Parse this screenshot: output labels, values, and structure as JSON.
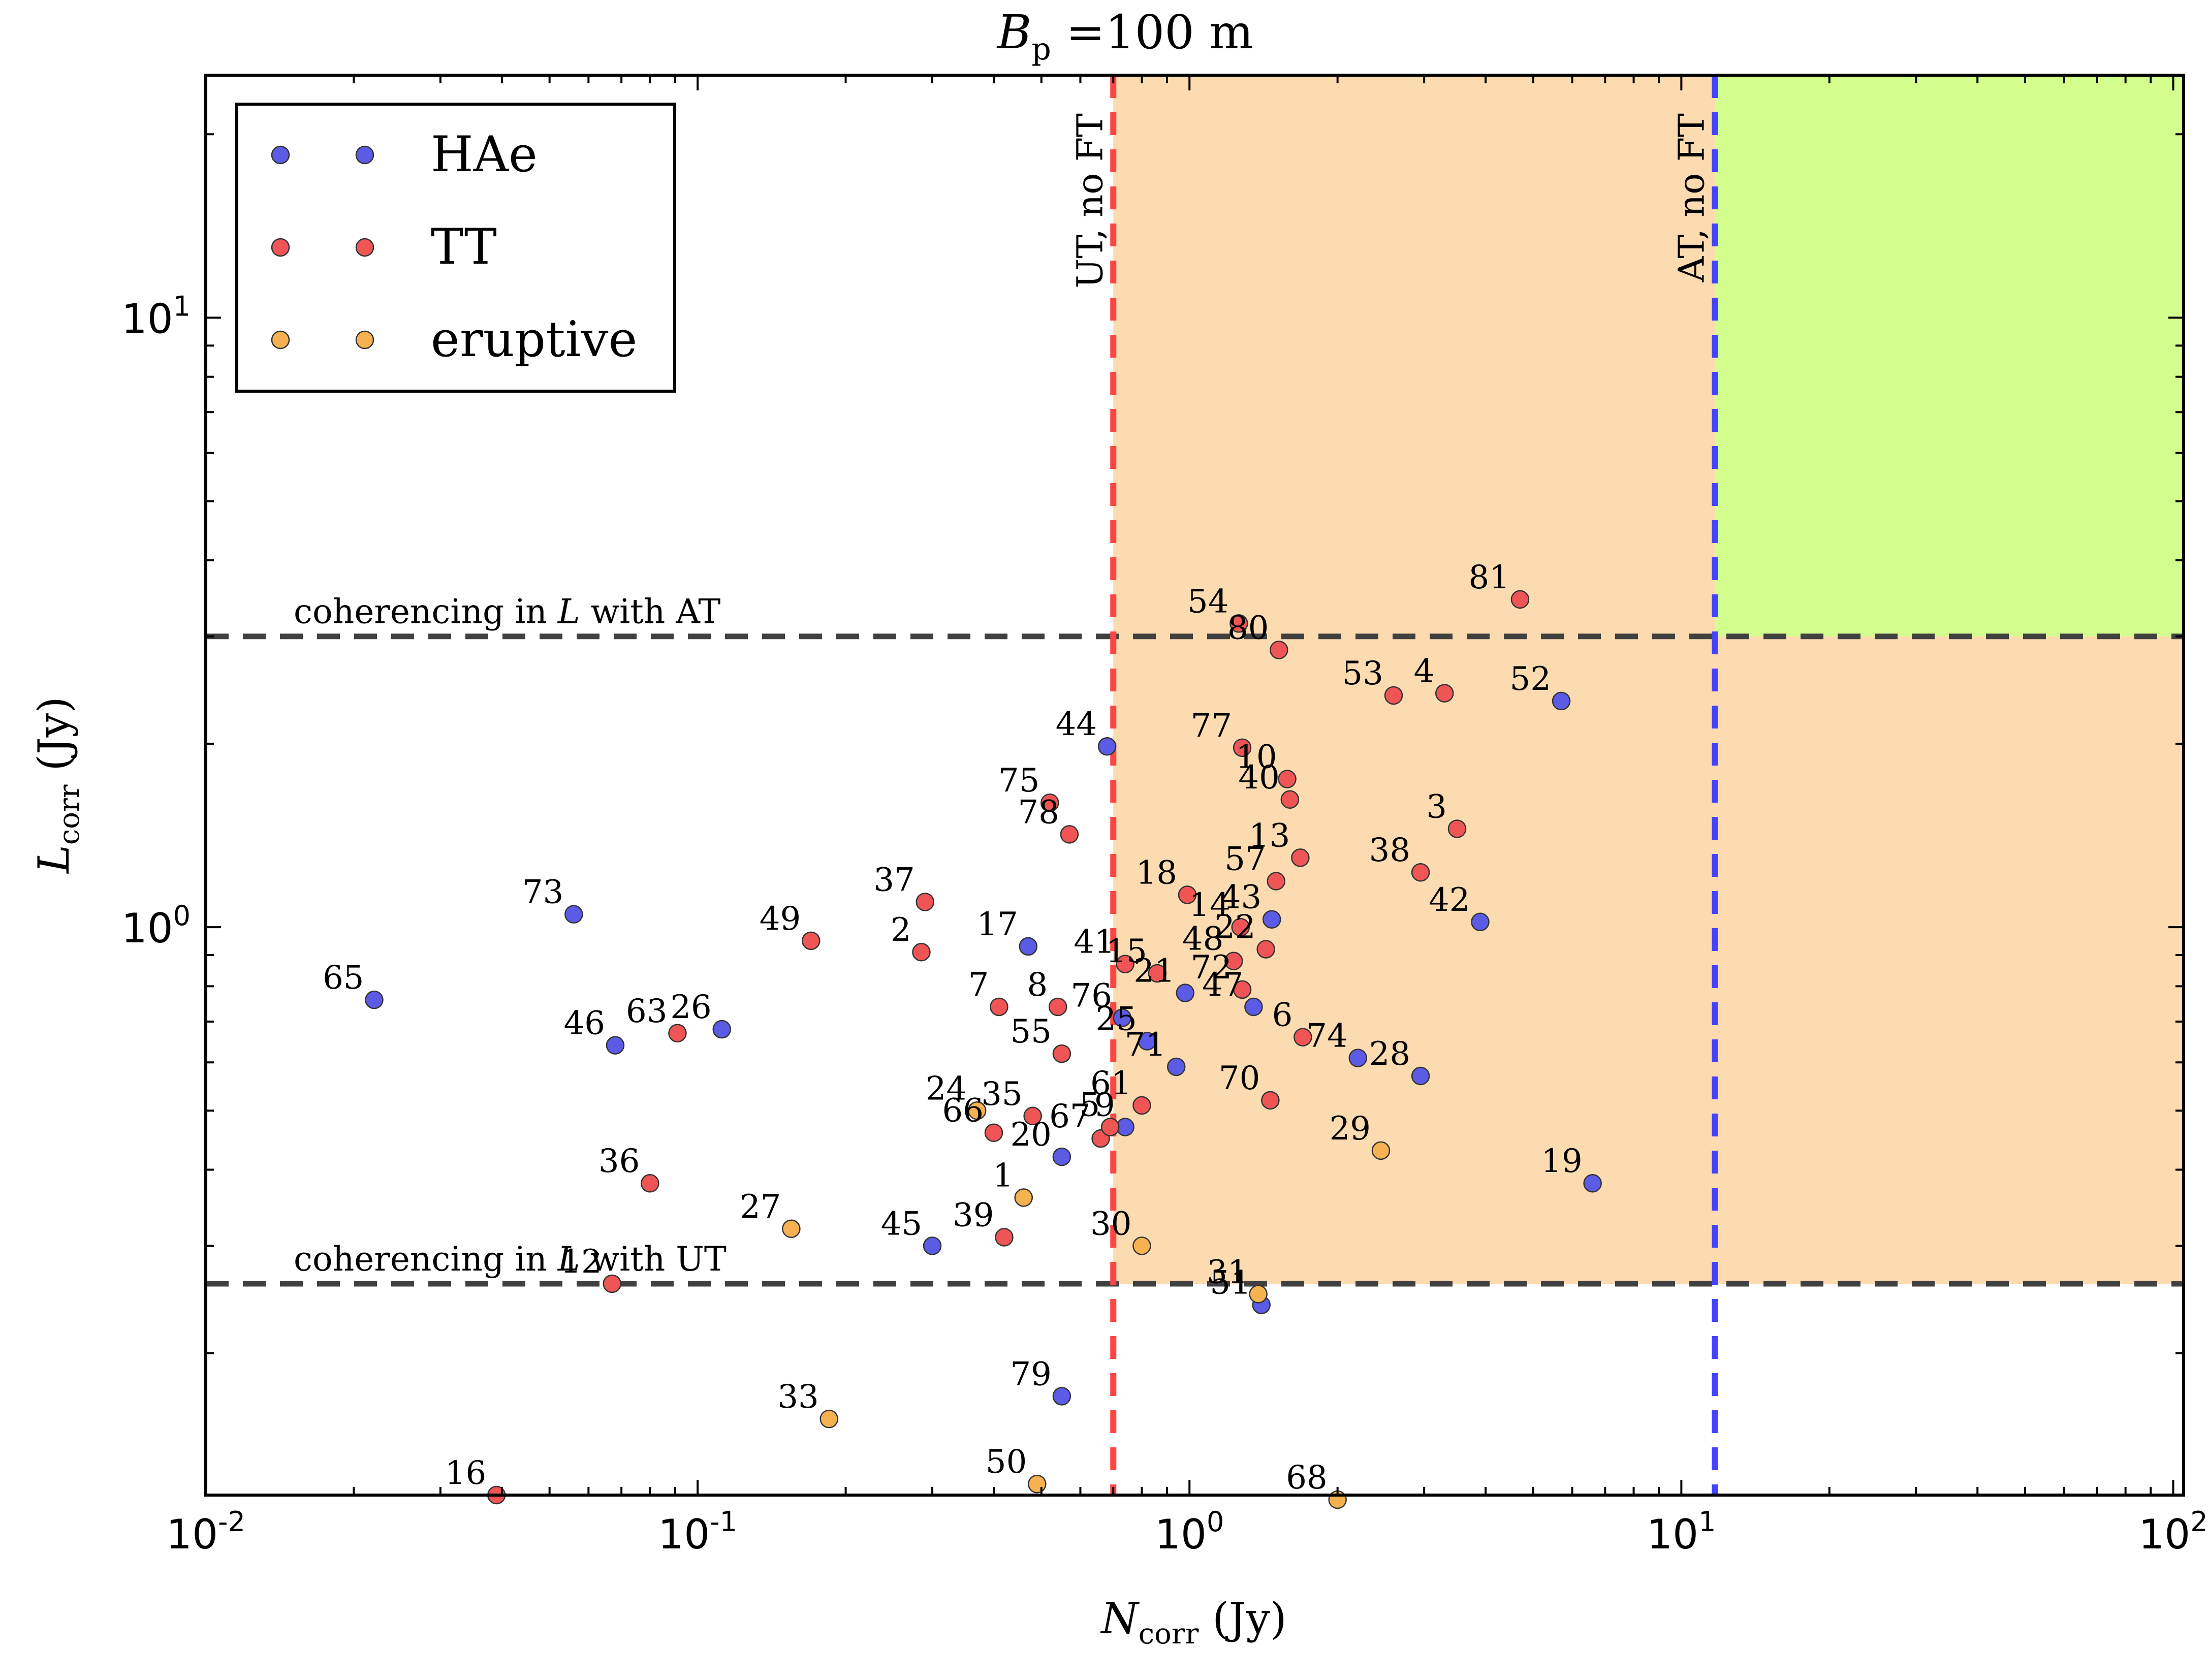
{
  "chart_data": {
    "type": "scatter",
    "title": "B_p = 100 m",
    "title_parts": {
      "main": "B",
      "sub": "p",
      "rest": " =100 m"
    },
    "xlabel_parts": {
      "main": "N",
      "sub": "corr",
      "rest": " (Jy)"
    },
    "ylabel_parts": {
      "main": "L",
      "sub": "corr",
      "rest": " (Jy)"
    },
    "x_scale": "log",
    "y_scale": "log",
    "xlim": [
      0.01,
      105
    ],
    "ylim": [
      0.117,
      25
    ],
    "x_ticks": [
      {
        "value": 0.01,
        "base": "10",
        "exp": "-2"
      },
      {
        "value": 0.1,
        "base": "10",
        "exp": "-1"
      },
      {
        "value": 1,
        "base": "10",
        "exp": "0"
      },
      {
        "value": 10,
        "base": "10",
        "exp": "1"
      },
      {
        "value": 100,
        "base": "10",
        "exp": "2"
      }
    ],
    "y_ticks": [
      {
        "value": 1,
        "base": "10",
        "exp": "0"
      },
      {
        "value": 10,
        "base": "10",
        "exp": "1"
      }
    ],
    "grid": false,
    "legend_position": "top-left",
    "colors": {
      "HAe": "#5b5be6",
      "TT": "#f05555",
      "eruptive": "#f6b250",
      "orange_region": "#fddbb0",
      "green_region": "#d3fd8d",
      "ut_line": "#ff4444",
      "at_line": "#4444ff",
      "coherencing_line": "#404040"
    },
    "regions": [
      {
        "name": "orange",
        "x_range": [
          0.7,
          105
        ],
        "y_range": [
          0.26,
          25
        ]
      },
      {
        "name": "green",
        "x_range": [
          11.7,
          105
        ],
        "y_range": [
          3.0,
          25
        ]
      }
    ],
    "vertical_lines": [
      {
        "x": 0.7,
        "label": "UT, no FT",
        "color": "#ff4444"
      },
      {
        "x": 11.7,
        "label": "AT, no FT",
        "color": "#4444ff"
      }
    ],
    "horizontal_lines": [
      {
        "y": 3.0,
        "label_parts": {
          "pre": "coherencing in ",
          "italic": "L",
          "post": " with AT"
        }
      },
      {
        "y": 0.26,
        "label_parts": {
          "pre": "coherencing in ",
          "italic": "L",
          "post": " with UT"
        }
      }
    ],
    "series": [
      {
        "name": "HAe",
        "points": [
          {
            "id": "65",
            "x": 0.022,
            "y": 0.76
          },
          {
            "id": "73",
            "x": 0.056,
            "y": 1.05
          },
          {
            "id": "46",
            "x": 0.068,
            "y": 0.64
          },
          {
            "id": "26",
            "x": 0.112,
            "y": 0.68
          },
          {
            "id": "17",
            "x": 0.47,
            "y": 0.93
          },
          {
            "id": "44",
            "x": 0.68,
            "y": 1.98
          },
          {
            "id": "20",
            "x": 0.55,
            "y": 0.42
          },
          {
            "id": "45",
            "x": 0.3,
            "y": 0.3
          },
          {
            "id": "79",
            "x": 0.55,
            "y": 0.17
          },
          {
            "id": "25",
            "x": 0.82,
            "y": 0.65
          },
          {
            "id": "21",
            "x": 0.98,
            "y": 0.78
          },
          {
            "id": "71",
            "x": 0.94,
            "y": 0.59
          },
          {
            "id": "76",
            "x": 0.73,
            "y": 0.71
          },
          {
            "id": "47",
            "x": 1.35,
            "y": 0.74
          },
          {
            "id": "43",
            "x": 1.47,
            "y": 1.03
          },
          {
            "id": "51",
            "x": 1.4,
            "y": 0.24
          },
          {
            "id": "74",
            "x": 2.2,
            "y": 0.61
          },
          {
            "id": "28",
            "x": 2.95,
            "y": 0.57
          },
          {
            "id": "42",
            "x": 3.9,
            "y": 1.02
          },
          {
            "id": "52",
            "x": 5.7,
            "y": 2.35
          },
          {
            "id": "19",
            "x": 6.6,
            "y": 0.38
          },
          {
            "id": "9",
            "x": 0.74,
            "y": 0.47
          }
        ]
      },
      {
        "name": "TT",
        "points": [
          {
            "id": "16",
            "x": 0.039,
            "y": 0.117
          },
          {
            "id": "12",
            "x": 0.067,
            "y": 0.26
          },
          {
            "id": "36",
            "x": 0.08,
            "y": 0.38
          },
          {
            "id": "63",
            "x": 0.091,
            "y": 0.67
          },
          {
            "id": "49",
            "x": 0.17,
            "y": 0.95
          },
          {
            "id": "37",
            "x": 0.29,
            "y": 1.1
          },
          {
            "id": "2",
            "x": 0.285,
            "y": 0.91
          },
          {
            "id": "7",
            "x": 0.41,
            "y": 0.74
          },
          {
            "id": "8",
            "x": 0.54,
            "y": 0.74
          },
          {
            "id": "55",
            "x": 0.55,
            "y": 0.62
          },
          {
            "id": "66",
            "x": 0.4,
            "y": 0.46
          },
          {
            "id": "35",
            "x": 0.48,
            "y": 0.49
          },
          {
            "id": "39",
            "x": 0.42,
            "y": 0.31
          },
          {
            "id": "75",
            "x": 0.52,
            "y": 1.6
          },
          {
            "id": "78",
            "x": 0.57,
            "y": 1.42
          },
          {
            "id": "41",
            "x": 0.74,
            "y": 0.87
          },
          {
            "id": "15",
            "x": 0.86,
            "y": 0.84
          },
          {
            "id": "61",
            "x": 0.8,
            "y": 0.51
          },
          {
            "id": "67",
            "x": 0.66,
            "y": 0.45
          },
          {
            "id": "5",
            "x": 0.69,
            "y": 0.47
          },
          {
            "id": "18",
            "x": 0.99,
            "y": 1.13
          },
          {
            "id": "54",
            "x": 1.26,
            "y": 3.15
          },
          {
            "id": "80",
            "x": 1.52,
            "y": 2.85
          },
          {
            "id": "77",
            "x": 1.28,
            "y": 1.97
          },
          {
            "id": "10",
            "x": 1.58,
            "y": 1.75
          },
          {
            "id": "40",
            "x": 1.6,
            "y": 1.62
          },
          {
            "id": "13",
            "x": 1.68,
            "y": 1.3
          },
          {
            "id": "57",
            "x": 1.5,
            "y": 1.19
          },
          {
            "id": "14",
            "x": 1.27,
            "y": 1.0
          },
          {
            "id": "22",
            "x": 1.43,
            "y": 0.92
          },
          {
            "id": "48",
            "x": 1.23,
            "y": 0.88
          },
          {
            "id": "72",
            "x": 1.28,
            "y": 0.79
          },
          {
            "id": "6",
            "x": 1.7,
            "y": 0.66
          },
          {
            "id": "70",
            "x": 1.46,
            "y": 0.52
          },
          {
            "id": "38",
            "x": 2.95,
            "y": 1.23
          },
          {
            "id": "3",
            "x": 3.5,
            "y": 1.45
          },
          {
            "id": "53",
            "x": 2.6,
            "y": 2.4
          },
          {
            "id": "4",
            "x": 3.3,
            "y": 2.42
          },
          {
            "id": "81",
            "x": 4.7,
            "y": 3.45
          }
        ]
      },
      {
        "name": "eruptive",
        "points": [
          {
            "id": "33",
            "x": 0.185,
            "y": 0.156
          },
          {
            "id": "50",
            "x": 0.49,
            "y": 0.122
          },
          {
            "id": "27",
            "x": 0.155,
            "y": 0.32
          },
          {
            "id": "24",
            "x": 0.37,
            "y": 0.5
          },
          {
            "id": "1",
            "x": 0.46,
            "y": 0.36
          },
          {
            "id": "30",
            "x": 0.8,
            "y": 0.3
          },
          {
            "id": "31",
            "x": 1.38,
            "y": 0.25
          },
          {
            "id": "29",
            "x": 2.45,
            "y": 0.43
          },
          {
            "id": "68",
            "x": 2.0,
            "y": 0.115
          }
        ]
      }
    ]
  }
}
